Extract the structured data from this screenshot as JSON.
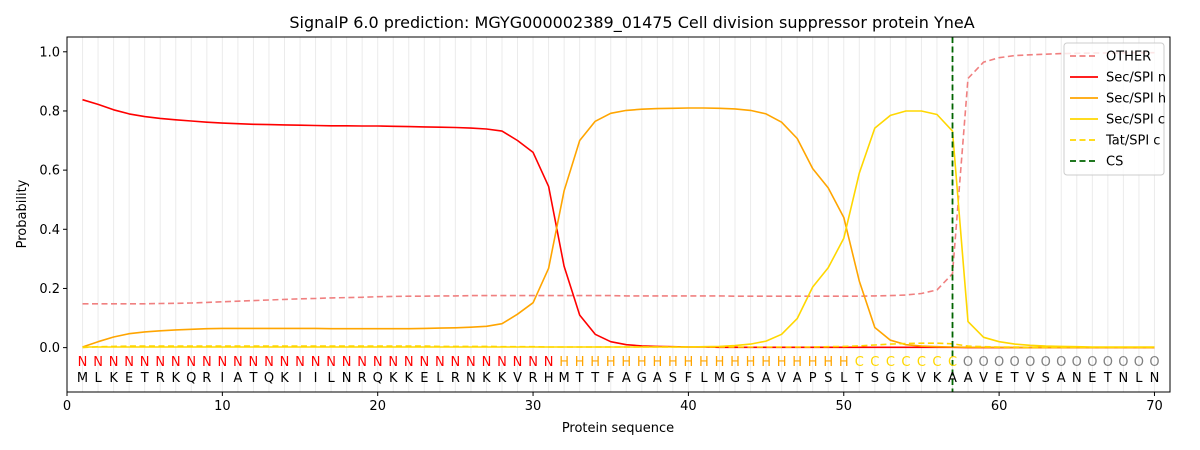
{
  "chart_data": {
    "type": "line",
    "title": "SignalP 6.0 prediction: MGYG000002389_01475 Cell division suppressor protein YneA",
    "xlabel": "Protein sequence",
    "ylabel": "Probability",
    "xlim": [
      0,
      71
    ],
    "ylim": [
      -0.15,
      1.05
    ],
    "xticks": [
      "0",
      "10",
      "20",
      "30",
      "40",
      "50",
      "60",
      "70"
    ],
    "xtick_values": [
      0,
      10,
      20,
      30,
      40,
      50,
      60,
      70
    ],
    "yticks": [
      "0.0",
      "0.2",
      "0.4",
      "0.6",
      "0.8",
      "1.0"
    ],
    "ytick_values": [
      0.0,
      0.2,
      0.4,
      0.6,
      0.8,
      1.0
    ],
    "grid": "vertical",
    "legend_position": "top-right",
    "sequence": [
      "M",
      "L",
      "K",
      "E",
      "T",
      "R",
      "K",
      "Q",
      "R",
      "I",
      "A",
      "T",
      "Q",
      "K",
      "I",
      "I",
      "L",
      "N",
      "R",
      "Q",
      "K",
      "K",
      "E",
      "L",
      "R",
      "N",
      "K",
      "K",
      "V",
      "R",
      "H",
      "M",
      "T",
      "T",
      "F",
      "A",
      "G",
      "A",
      "S",
      "F",
      "L",
      "M",
      "G",
      "S",
      "A",
      "V",
      "A",
      "P",
      "S",
      "L",
      "T",
      "S",
      "G",
      "K",
      "V",
      "K",
      "A",
      "A",
      "V",
      "E",
      "T",
      "V",
      "S",
      "A",
      "N",
      "E",
      "T",
      "N",
      "L",
      "N"
    ],
    "region_labels": [
      "N",
      "N",
      "N",
      "N",
      "N",
      "N",
      "N",
      "N",
      "N",
      "N",
      "N",
      "N",
      "N",
      "N",
      "N",
      "N",
      "N",
      "N",
      "N",
      "N",
      "N",
      "N",
      "N",
      "N",
      "N",
      "N",
      "N",
      "N",
      "N",
      "N",
      "N",
      "H",
      "H",
      "H",
      "H",
      "H",
      "H",
      "H",
      "H",
      "H",
      "H",
      "H",
      "H",
      "H",
      "H",
      "H",
      "H",
      "H",
      "H",
      "H",
      "C",
      "C",
      "C",
      "C",
      "C",
      "C",
      "C",
      "O",
      "O",
      "O",
      "O",
      "O",
      "O",
      "O",
      "O",
      "O",
      "O",
      "O",
      "O",
      "O"
    ],
    "region_colors": {
      "N": "#ff0000",
      "H": "#ffa500",
      "C": "#ffd700",
      "O": "#808080"
    },
    "cleavage_site": 57,
    "series": [
      {
        "name": "OTHER",
        "color": "#f08080",
        "dash": true,
        "values": [
          0.148,
          0.148,
          0.148,
          0.148,
          0.148,
          0.149,
          0.15,
          0.151,
          0.153,
          0.155,
          0.157,
          0.159,
          0.161,
          0.163,
          0.165,
          0.166,
          0.168,
          0.169,
          0.17,
          0.172,
          0.173,
          0.174,
          0.174,
          0.175,
          0.175,
          0.176,
          0.176,
          0.176,
          0.176,
          0.176,
          0.176,
          0.176,
          0.176,
          0.176,
          0.176,
          0.175,
          0.175,
          0.175,
          0.175,
          0.175,
          0.175,
          0.175,
          0.174,
          0.174,
          0.174,
          0.174,
          0.174,
          0.174,
          0.174,
          0.174,
          0.174,
          0.175,
          0.176,
          0.178,
          0.183,
          0.195,
          0.25,
          0.91,
          0.965,
          0.98,
          0.987,
          0.99,
          0.992,
          0.994,
          0.995,
          0.996,
          0.996,
          0.997,
          0.997,
          0.997
        ]
      },
      {
        "name": "Sec/SPI n",
        "color": "#ff0000",
        "dash": false,
        "values": [
          0.838,
          0.822,
          0.804,
          0.79,
          0.781,
          0.775,
          0.77,
          0.766,
          0.762,
          0.759,
          0.757,
          0.755,
          0.754,
          0.753,
          0.752,
          0.751,
          0.75,
          0.75,
          0.749,
          0.749,
          0.748,
          0.747,
          0.746,
          0.745,
          0.744,
          0.742,
          0.739,
          0.732,
          0.7,
          0.66,
          0.545,
          0.275,
          0.11,
          0.045,
          0.02,
          0.01,
          0.006,
          0.004,
          0.003,
          0.002,
          0.002,
          0.001,
          0.001,
          0.001,
          0.001,
          0.001,
          0.001,
          0.001,
          0.001,
          0.001,
          0.001,
          0.001,
          0.001,
          0.001,
          0.001,
          0.001,
          0.001,
          0.0,
          0.0,
          0.0,
          0.0,
          0.0,
          0.0,
          0.0,
          0.0,
          0.0,
          0.0,
          0.0,
          0.0,
          0.0
        ]
      },
      {
        "name": "Sec/SPI h",
        "color": "#ffa500",
        "dash": false,
        "values": [
          0.002,
          0.02,
          0.036,
          0.047,
          0.053,
          0.057,
          0.06,
          0.062,
          0.064,
          0.065,
          0.065,
          0.065,
          0.065,
          0.065,
          0.065,
          0.065,
          0.064,
          0.064,
          0.064,
          0.064,
          0.064,
          0.064,
          0.065,
          0.066,
          0.067,
          0.069,
          0.072,
          0.081,
          0.113,
          0.152,
          0.268,
          0.53,
          0.7,
          0.765,
          0.792,
          0.802,
          0.806,
          0.808,
          0.809,
          0.81,
          0.81,
          0.809,
          0.807,
          0.802,
          0.79,
          0.762,
          0.707,
          0.605,
          0.54,
          0.44,
          0.225,
          0.068,
          0.025,
          0.01,
          0.005,
          0.003,
          0.002,
          0.001,
          0.001,
          0.001,
          0.0,
          0.0,
          0.0,
          0.0,
          0.0,
          0.0,
          0.0,
          0.0,
          0.0,
          0.0
        ]
      },
      {
        "name": "Sec/SPI c",
        "color": "#ffd700",
        "dash": false,
        "values": [
          0.002,
          0.002,
          0.002,
          0.002,
          0.002,
          0.002,
          0.002,
          0.002,
          0.002,
          0.002,
          0.002,
          0.002,
          0.002,
          0.002,
          0.002,
          0.002,
          0.002,
          0.002,
          0.002,
          0.002,
          0.002,
          0.002,
          0.002,
          0.002,
          0.002,
          0.002,
          0.002,
          0.002,
          0.002,
          0.002,
          0.002,
          0.002,
          0.002,
          0.002,
          0.002,
          0.002,
          0.002,
          0.002,
          0.002,
          0.002,
          0.003,
          0.004,
          0.007,
          0.012,
          0.022,
          0.045,
          0.098,
          0.205,
          0.27,
          0.37,
          0.59,
          0.742,
          0.785,
          0.8,
          0.8,
          0.788,
          0.732,
          0.088,
          0.035,
          0.02,
          0.012,
          0.008,
          0.005,
          0.004,
          0.003,
          0.002,
          0.002,
          0.002,
          0.002,
          0.002
        ]
      },
      {
        "name": "Tat/SPI c",
        "color": "#ffd700",
        "dash": true,
        "values": [
          0.0,
          0.003,
          0.004,
          0.005,
          0.005,
          0.005,
          0.005,
          0.005,
          0.005,
          0.005,
          0.005,
          0.005,
          0.005,
          0.005,
          0.005,
          0.005,
          0.005,
          0.005,
          0.005,
          0.005,
          0.005,
          0.005,
          0.005,
          0.004,
          0.004,
          0.004,
          0.004,
          0.003,
          0.003,
          0.003,
          0.002,
          0.002,
          0.002,
          0.002,
          0.002,
          0.002,
          0.002,
          0.002,
          0.002,
          0.002,
          0.002,
          0.002,
          0.002,
          0.002,
          0.002,
          0.002,
          0.002,
          0.002,
          0.003,
          0.004,
          0.006,
          0.009,
          0.012,
          0.014,
          0.015,
          0.015,
          0.013,
          0.005,
          0.003,
          0.002,
          0.002,
          0.001,
          0.001,
          0.001,
          0.001,
          0.001,
          0.001,
          0.001,
          0.001,
          0.001
        ]
      }
    ],
    "legend": [
      {
        "label": "OTHER",
        "color": "#f08080",
        "style": "dashed"
      },
      {
        "label": "Sec/SPI n",
        "color": "#ff0000",
        "style": "solid"
      },
      {
        "label": "Sec/SPI h",
        "color": "#ffa500",
        "style": "solid"
      },
      {
        "label": "Sec/SPI c",
        "color": "#ffd700",
        "style": "solid"
      },
      {
        "label": "Tat/SPI c",
        "color": "#ffd700",
        "style": "dashed"
      },
      {
        "label": "CS",
        "color": "#006400",
        "style": "dashed"
      }
    ]
  }
}
